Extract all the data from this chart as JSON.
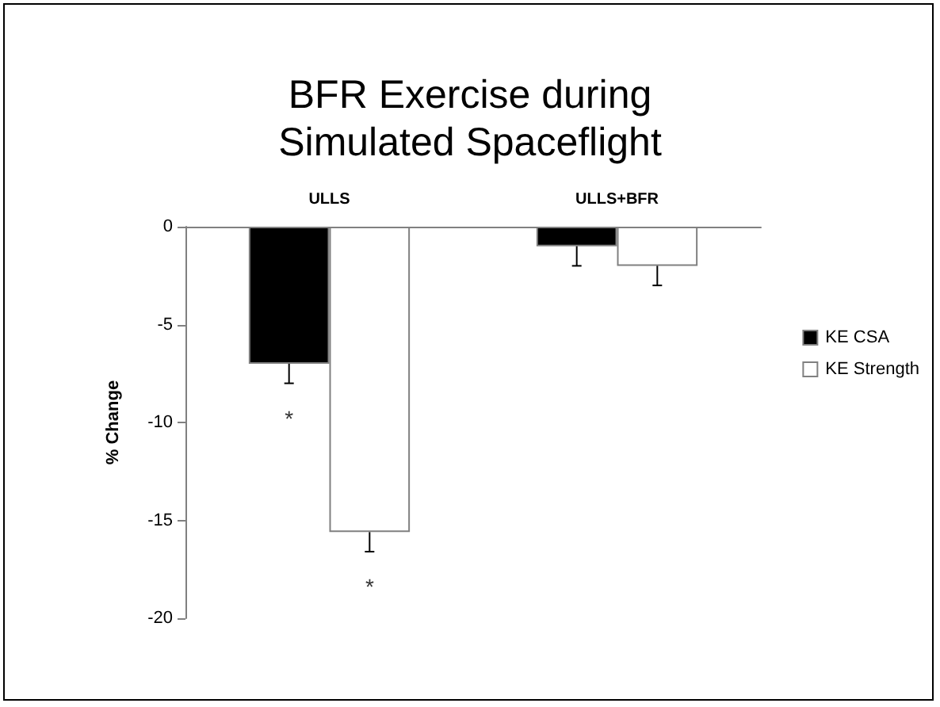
{
  "chart_data": {
    "type": "bar",
    "title": "BFR Exercise during\nSimulated Spaceflight",
    "ylabel": "% Change",
    "categories": [
      "ULLS",
      "ULLS+BFR"
    ],
    "series": [
      {
        "name": "KE CSA",
        "color": "#000000",
        "values": [
          -7,
          -1
        ],
        "errors": [
          [
            -8,
            -7
          ],
          [
            -2,
            -1
          ]
        ]
      },
      {
        "name": "KE Strength",
        "color": "#ffffff",
        "values": [
          -15.6,
          -2
        ],
        "errors": [
          [
            -16.6,
            -15.6
          ],
          [
            -3,
            -2
          ]
        ]
      }
    ],
    "annotations": [
      "*",
      "*"
    ],
    "ylim": [
      -20,
      0
    ],
    "yticks": [
      -20,
      -15,
      -10,
      -5,
      0
    ],
    "grid": false,
    "legend": "right"
  }
}
